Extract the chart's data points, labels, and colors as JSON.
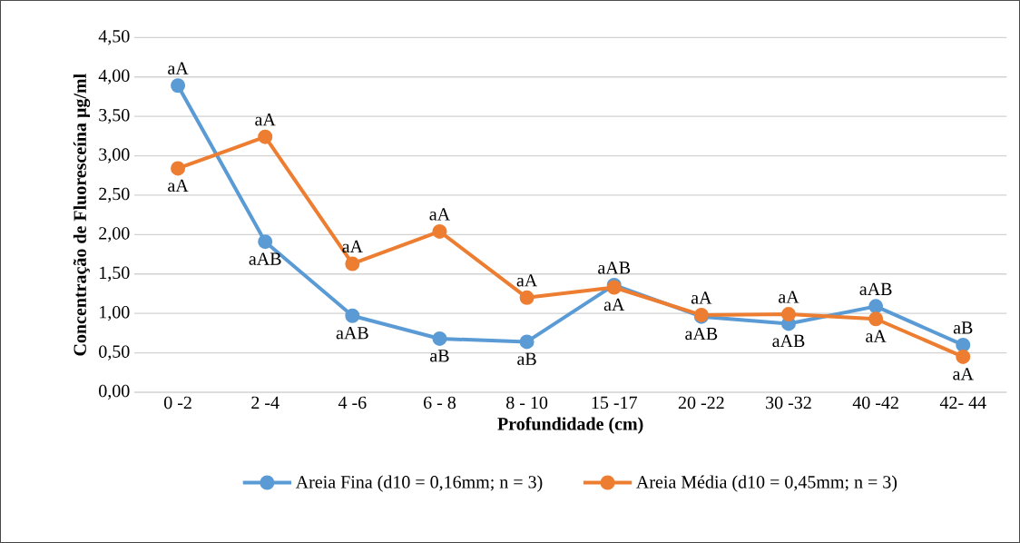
{
  "chart_data": {
    "type": "line",
    "xlabel": "Profundidade (cm)",
    "ylabel": "Concentração de Fluoresceína µg/ml",
    "categories": [
      "0 -2",
      "2 -4",
      "4 -6",
      "6 - 8",
      "8 - 10",
      "15 -17",
      "20 -22",
      "30 -32",
      "40 -42",
      "42- 44"
    ],
    "series": [
      {
        "name": "Areia Fina (d10 = 0,16mm; n = 3)",
        "color": "#5b9bd5",
        "values": [
          3.89,
          1.91,
          0.97,
          0.68,
          0.64,
          1.36,
          0.96,
          0.87,
          1.09,
          0.6
        ],
        "value_labels": [
          "aA",
          "aAB",
          "aAB",
          "aB",
          "aB",
          "aAB",
          "aAB",
          "aAB",
          "aAB",
          "aB"
        ]
      },
      {
        "name": "Areia Média (d10 = 0,45mm; n = 3)",
        "color": "#ed7d31",
        "values": [
          2.84,
          3.24,
          1.63,
          2.04,
          1.2,
          1.33,
          0.98,
          0.99,
          0.93,
          0.45
        ],
        "value_labels": [
          "aA",
          "aA",
          "aA",
          "aA",
          "aA",
          "aA",
          "aA",
          "aA",
          "aA",
          "aA"
        ]
      }
    ],
    "ylim": [
      0,
      4.5
    ],
    "yticks": [
      {
        "value": 0,
        "label": "0,00"
      },
      {
        "value": 0.5,
        "label": "0,50"
      },
      {
        "value": 1,
        "label": "1,00"
      },
      {
        "value": 1.5,
        "label": "1,50"
      },
      {
        "value": 2,
        "label": "2,00"
      },
      {
        "value": 2.5,
        "label": "2,50"
      },
      {
        "value": 3,
        "label": "3,00"
      },
      {
        "value": 3.5,
        "label": "3,50"
      },
      {
        "value": 4,
        "label": "4,00"
      },
      {
        "value": 4.5,
        "label": "4,50"
      }
    ],
    "grid": "y",
    "legend": "bottom",
    "marker": "circle",
    "line_style": "solid"
  }
}
